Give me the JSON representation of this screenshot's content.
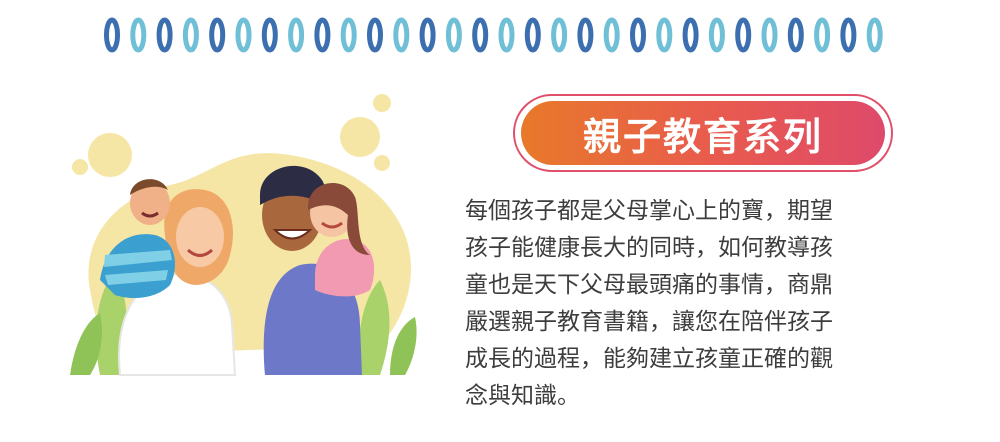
{
  "ring_count": 30,
  "ring_colors": [
    "#3b6fb0",
    "#6fbfd6"
  ],
  "badge": {
    "title": "親子教育系列"
  },
  "description": {
    "lines": [
      "每個孩子都是父母掌心上的寶，期望",
      "孩子能健康長大的同時，如何教導孩",
      "童也是天下父母最頭痛的事情，商鼎",
      "嚴選親子教育書籍，讓您在陪伴孩子",
      "成長的過程，能夠建立孩童正確的觀",
      "念與知識。"
    ]
  },
  "illustration": {
    "icon": "family-illustration"
  }
}
